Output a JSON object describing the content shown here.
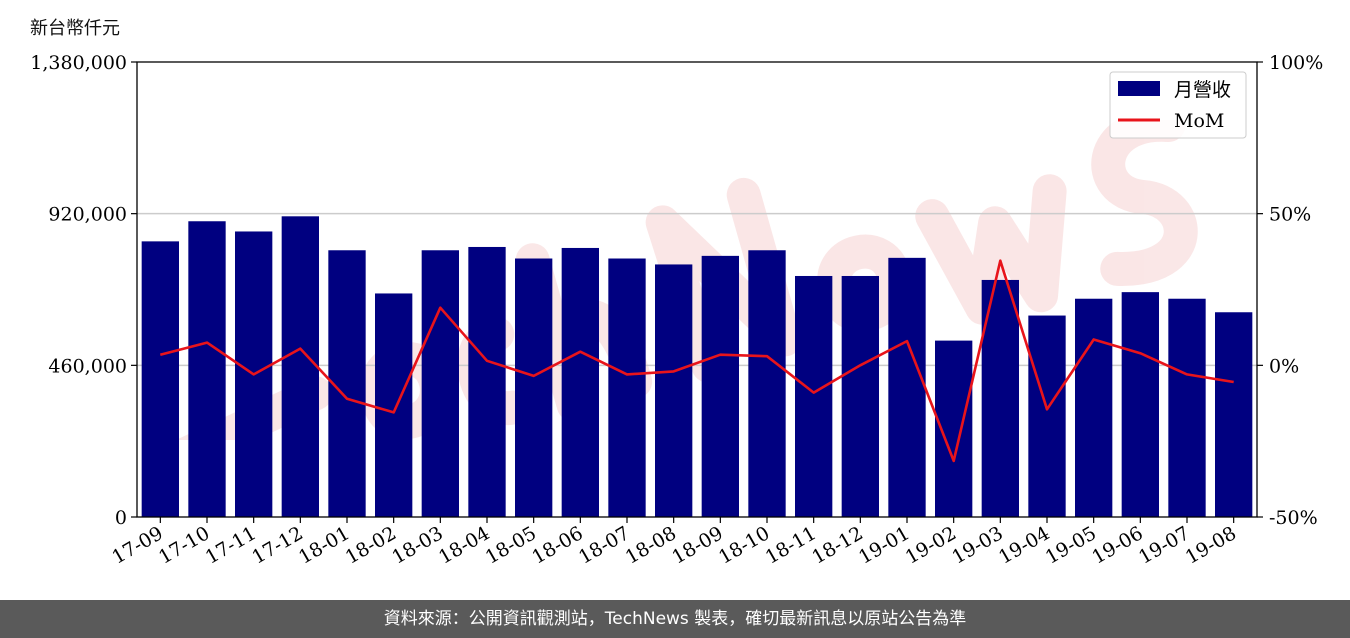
{
  "page": {
    "unit_label": "新台幣仟元",
    "footer": "資料來源：公開資訊觀測站，TechNews 製表，確切最新訊息以原站公告為準",
    "watermark": "TechNews"
  },
  "colors": {
    "bar": "#000080",
    "line": "#e8141b",
    "grid": "#cccccc",
    "footer_bg": "#5a5a5a"
  },
  "chart_data": {
    "type": "bar",
    "categories": [
      "17-09",
      "17-10",
      "17-11",
      "17-12",
      "18-01",
      "18-02",
      "18-03",
      "18-04",
      "18-05",
      "18-06",
      "18-07",
      "18-08",
      "18-09",
      "18-10",
      "18-11",
      "18-12",
      "19-01",
      "19-02",
      "19-03",
      "19-04",
      "19-05",
      "19-06",
      "19-07",
      "19-08"
    ],
    "series": [
      {
        "name": "月營收",
        "type": "bar",
        "axis": "left",
        "values": [
          836000,
          897000,
          866000,
          912000,
          809000,
          678000,
          809000,
          819000,
          784000,
          816000,
          784000,
          766000,
          792000,
          809000,
          731000,
          731000,
          786000,
          535000,
          719000,
          611000,
          662000,
          682000,
          662000,
          621000
        ]
      },
      {
        "name": "MoM",
        "type": "line",
        "axis": "right",
        "values": [
          3.5,
          7.5,
          -3.0,
          5.5,
          -11.0,
          -15.5,
          19.0,
          1.5,
          -3.5,
          4.5,
          -3.0,
          -2.0,
          3.5,
          3.0,
          -9.0,
          0.0,
          8.0,
          -31.5,
          34.5,
          -14.5,
          8.5,
          4.0,
          -3.0,
          -5.5
        ]
      }
    ],
    "y_left": {
      "min": 0,
      "max": 1380000,
      "ticks": [
        0,
        460000,
        920000,
        1380000
      ],
      "tick_labels": [
        "0",
        "460,000",
        "920,000",
        "1,380,000"
      ]
    },
    "y_right": {
      "min": -50,
      "max": 100,
      "ticks": [
        -50,
        0,
        50,
        100
      ],
      "tick_labels": [
        "-50%",
        "0%",
        "50%",
        "100%"
      ]
    },
    "grid": "horizontal",
    "legend": {
      "placement": "top-right",
      "entries": [
        "月營收",
        "MoM"
      ]
    },
    "title": "",
    "xlabel": "",
    "ylabel": ""
  }
}
